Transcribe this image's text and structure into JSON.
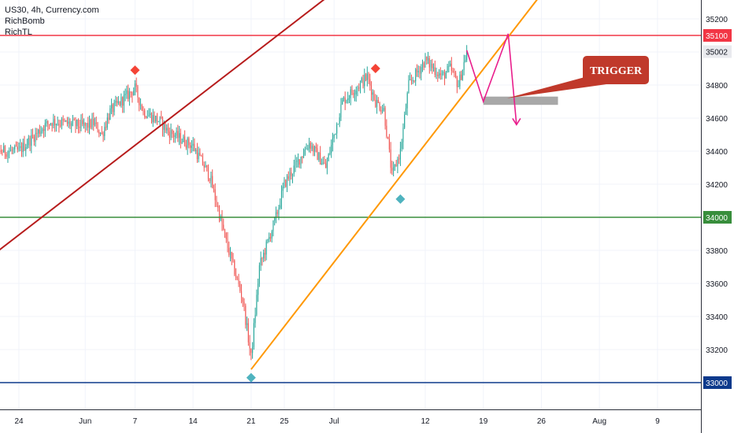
{
  "legend": {
    "symbol_line": "US30, 4h, Currency.com",
    "indicator_1": "RichBomb",
    "indicator_2": "RichTL"
  },
  "annotation": {
    "trigger_label": "TRIGGER"
  },
  "colors": {
    "up": "#26a69a",
    "down": "#ef5350",
    "resistance": "#f23645",
    "support_green": "#388e3c",
    "support_blue": "#0d3a8c",
    "channel": "#b71c1c",
    "trend": "#ff9800",
    "projection": "#e91e8c",
    "trigger_box": "#a8a8a8",
    "callout": "#c0392b",
    "marker_top": "#f44336",
    "marker_bottom": "#4fb3bf"
  },
  "chart_data": {
    "type": "candlestick",
    "title": "US30, 4h, Currency.com",
    "xlabel": "",
    "ylabel": "",
    "ylim": [
      32850,
      35280
    ],
    "y_ticks": [
      33000,
      33200,
      33400,
      33600,
      33800,
      34000,
      34200,
      34400,
      34600,
      34800,
      35000,
      35200
    ],
    "x_ticks": [
      {
        "label": "24",
        "date": "2021-05-24"
      },
      {
        "label": "Jun",
        "date": "2021-06-01"
      },
      {
        "label": "7",
        "date": "2021-06-07"
      },
      {
        "label": "14",
        "date": "2021-06-14"
      },
      {
        "label": "21",
        "date": "2021-06-21"
      },
      {
        "label": "25",
        "date": "2021-06-25"
      },
      {
        "label": "Jul",
        "date": "2021-07-01"
      },
      {
        "label": "12",
        "date": "2021-07-12"
      },
      {
        "label": "19",
        "date": "2021-07-19"
      },
      {
        "label": "26",
        "date": "2021-07-26"
      },
      {
        "label": "Aug",
        "date": "2021-08-02"
      },
      {
        "label": "9",
        "date": "2021-08-09"
      }
    ],
    "price_labels": [
      {
        "value": 35100,
        "text": "35100",
        "style": "resistance"
      },
      {
        "value": 35002,
        "text": "35002",
        "style": "last"
      },
      {
        "value": 34000,
        "text": "34000",
        "style": "support_green"
      },
      {
        "value": 33000,
        "text": "33000",
        "style": "support_blue"
      }
    ],
    "horizontal_lines": [
      {
        "name": "resistance",
        "value": 35100
      },
      {
        "name": "support_green",
        "value": 34000
      },
      {
        "name": "support_blue",
        "value": 33000
      }
    ],
    "channel_line": {
      "from": {
        "date": "2021-05-19",
        "price": 33700
      },
      "to": {
        "date": "2021-07-04",
        "price": 35480
      }
    },
    "trend_line": {
      "from": {
        "date": "2021-06-21",
        "price": 33080
      },
      "to": {
        "date": "2021-07-28",
        "price": 35480
      }
    },
    "projection_path": [
      {
        "date": "2021-07-17",
        "price": 35010
      },
      {
        "date": "2021-07-19",
        "price": 34700
      },
      {
        "date": "2021-07-22",
        "price": 35110
      },
      {
        "date": "2021-07-23",
        "price": 34560
      }
    ],
    "trigger_zone": {
      "from_date": "2021-07-19",
      "to_date": "2021-07-28",
      "price_low": 34680,
      "price_high": 34730
    },
    "markers": [
      {
        "date": "2021-06-07",
        "price": 34890,
        "kind": "top"
      },
      {
        "date": "2021-07-06",
        "price": 34900,
        "kind": "top"
      },
      {
        "date": "2021-06-21",
        "price": 33030,
        "kind": "bottom"
      },
      {
        "date": "2021-07-09",
        "price": 34110,
        "kind": "bottom"
      }
    ],
    "series_date_range": [
      "2021-05-19",
      "2021-07-17"
    ],
    "close_waypoints": [
      {
        "date": "2021-05-19",
        "price": 33800
      },
      {
        "date": "2021-05-20",
        "price": 34200
      },
      {
        "date": "2021-05-21",
        "price": 34400
      },
      {
        "date": "2021-05-24",
        "price": 34400
      },
      {
        "date": "2021-05-26",
        "price": 34500
      },
      {
        "date": "2021-05-27",
        "price": 34550
      },
      {
        "date": "2021-05-28",
        "price": 34580
      },
      {
        "date": "2021-06-01",
        "price": 34550
      },
      {
        "date": "2021-06-02",
        "price": 34570
      },
      {
        "date": "2021-06-03",
        "price": 34500
      },
      {
        "date": "2021-06-04",
        "price": 34640
      },
      {
        "date": "2021-06-07",
        "price": 34780
      },
      {
        "date": "2021-06-08",
        "price": 34640
      },
      {
        "date": "2021-06-10",
        "price": 34580
      },
      {
        "date": "2021-06-11",
        "price": 34520
      },
      {
        "date": "2021-06-14",
        "price": 34430
      },
      {
        "date": "2021-06-16",
        "price": 34250
      },
      {
        "date": "2021-06-17",
        "price": 34050
      },
      {
        "date": "2021-06-18",
        "price": 33850
      },
      {
        "date": "2021-06-20",
        "price": 33500
      },
      {
        "date": "2021-06-21",
        "price": 33150
      },
      {
        "date": "2021-06-22",
        "price": 33700
      },
      {
        "date": "2021-06-23",
        "price": 33850
      },
      {
        "date": "2021-06-24",
        "price": 34000
      },
      {
        "date": "2021-06-25",
        "price": 34200
      },
      {
        "date": "2021-06-28",
        "price": 34450
      },
      {
        "date": "2021-06-30",
        "price": 34300
      },
      {
        "date": "2021-07-01",
        "price": 34500
      },
      {
        "date": "2021-07-02",
        "price": 34700
      },
      {
        "date": "2021-07-05",
        "price": 34850
      },
      {
        "date": "2021-07-06",
        "price": 34700
      },
      {
        "date": "2021-07-07",
        "price": 34650
      },
      {
        "date": "2021-07-08",
        "price": 34250
      },
      {
        "date": "2021-07-09",
        "price": 34400
      },
      {
        "date": "2021-07-10",
        "price": 34800
      },
      {
        "date": "2021-07-12",
        "price": 34950
      },
      {
        "date": "2021-07-14",
        "price": 34850
      },
      {
        "date": "2021-07-15",
        "price": 34900
      },
      {
        "date": "2021-07-16",
        "price": 34800
      },
      {
        "date": "2021-07-17",
        "price": 35000
      }
    ]
  }
}
